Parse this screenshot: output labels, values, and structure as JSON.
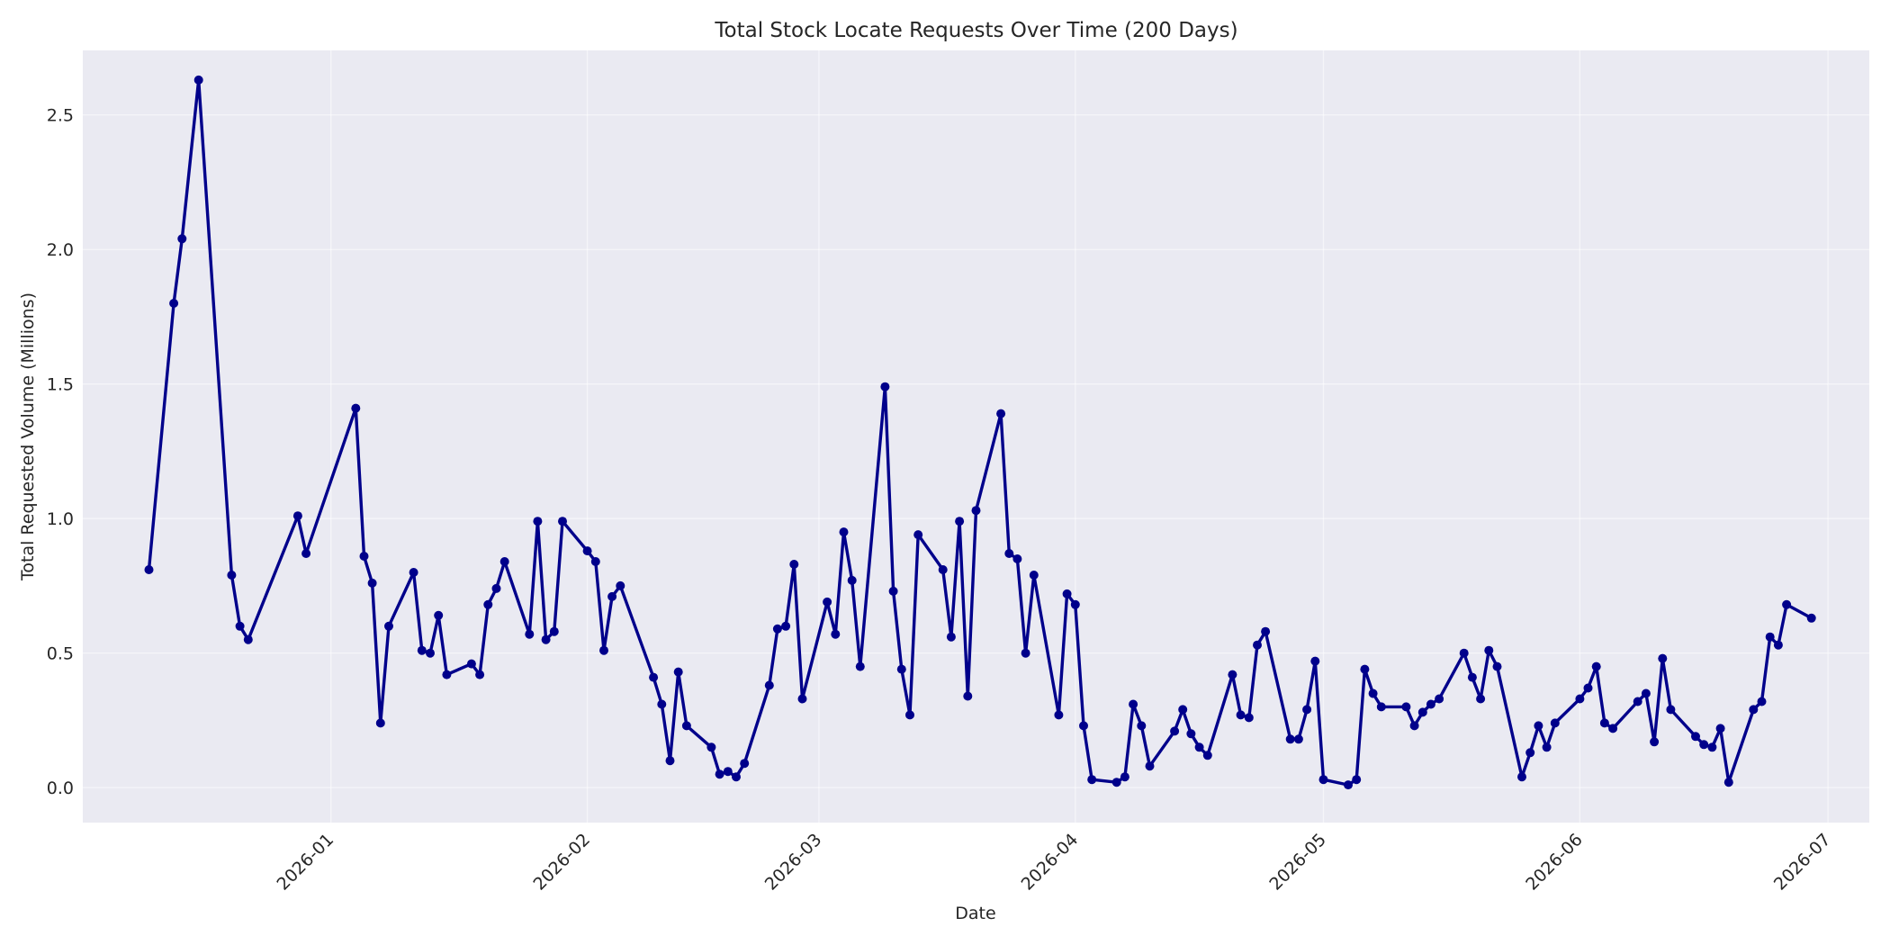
{
  "chart_data": {
    "type": "line",
    "title": "Total Stock Locate Requests Over Time (200 Days)",
    "xlabel": "Date",
    "ylabel": "Total Requested Volume (Millions)",
    "x_tick_labels": [
      "2026-01",
      "2026-02",
      "2026-03",
      "2026-04",
      "2026-05",
      "2026-06",
      "2026-07"
    ],
    "x_ticks": [
      "2026-01-01",
      "2026-02-01",
      "2026-03-01",
      "2026-04-01",
      "2026-05-01",
      "2026-06-01",
      "2026-07-01"
    ],
    "y_tick_labels": [
      "0.0",
      "0.5",
      "1.0",
      "1.5",
      "2.0",
      "2.5"
    ],
    "y_ticks": [
      0,
      0.5,
      1.0,
      1.5,
      2.0,
      2.5
    ],
    "xlim": [
      "2025-12-02",
      "2026-07-06"
    ],
    "ylim": [
      -0.13,
      2.74
    ],
    "grid": true,
    "colors": {
      "background": "#eaeaf2",
      "line": "#00008b",
      "grid": "#ffffff"
    },
    "series": [
      {
        "x": [
          "2025-12-10",
          "2025-12-13",
          "2025-12-14",
          "2025-12-16",
          "2025-12-20",
          "2025-12-21",
          "2025-12-22",
          "2025-12-28",
          "2025-12-29",
          "2026-01-04",
          "2026-01-05",
          "2026-01-06",
          "2026-01-07",
          "2026-01-08",
          "2026-01-11",
          "2026-01-12",
          "2026-01-13",
          "2026-01-14",
          "2026-01-15",
          "2026-01-18",
          "2026-01-19",
          "2026-01-20",
          "2026-01-21",
          "2026-01-22",
          "2026-01-25",
          "2026-01-26",
          "2026-01-27",
          "2026-01-28",
          "2026-01-29",
          "2026-02-01",
          "2026-02-02",
          "2026-02-03",
          "2026-02-04",
          "2026-02-05",
          "2026-02-09",
          "2026-02-10",
          "2026-02-11",
          "2026-02-12",
          "2026-02-13",
          "2026-02-16",
          "2026-02-17",
          "2026-02-18",
          "2026-02-19",
          "2026-02-20",
          "2026-02-23",
          "2026-02-24",
          "2026-02-25",
          "2026-02-26",
          "2026-02-27",
          "2026-03-02",
          "2026-03-03",
          "2026-03-04",
          "2026-03-05",
          "2026-03-06",
          "2026-03-09",
          "2026-03-10",
          "2026-03-11",
          "2026-03-12",
          "2026-03-13",
          "2026-03-16",
          "2026-03-17",
          "2026-03-18",
          "2026-03-19",
          "2026-03-20",
          "2026-03-23",
          "2026-03-24",
          "2026-03-25",
          "2026-03-26",
          "2026-03-27",
          "2026-03-30",
          "2026-03-31",
          "2026-04-01",
          "2026-04-02",
          "2026-04-03",
          "2026-04-06",
          "2026-04-07",
          "2026-04-08",
          "2026-04-09",
          "2026-04-10",
          "2026-04-13",
          "2026-04-14",
          "2026-04-15",
          "2026-04-16",
          "2026-04-17",
          "2026-04-20",
          "2026-04-21",
          "2026-04-22",
          "2026-04-23",
          "2026-04-24",
          "2026-04-27",
          "2026-04-28",
          "2026-04-29",
          "2026-04-30",
          "2026-05-01",
          "2026-05-04",
          "2026-05-05",
          "2026-05-06",
          "2026-05-07",
          "2026-05-08",
          "2026-05-11",
          "2026-05-12",
          "2026-05-13",
          "2026-05-14",
          "2026-05-15",
          "2026-05-18",
          "2026-05-19",
          "2026-05-20",
          "2026-05-21",
          "2026-05-22",
          "2026-05-25",
          "2026-05-26",
          "2026-05-27",
          "2026-05-28",
          "2026-05-29",
          "2026-06-01",
          "2026-06-02",
          "2026-06-03",
          "2026-06-04",
          "2026-06-05",
          "2026-06-08",
          "2026-06-09",
          "2026-06-10",
          "2026-06-11",
          "2026-06-12",
          "2026-06-15",
          "2026-06-16",
          "2026-06-17",
          "2026-06-18",
          "2026-06-19",
          "2026-06-22",
          "2026-06-23",
          "2026-06-24",
          "2026-06-25",
          "2026-06-26",
          "2026-06-29"
        ],
        "y": [
          0.81,
          1.8,
          2.04,
          2.63,
          0.79,
          0.6,
          0.55,
          1.01,
          0.87,
          1.41,
          0.86,
          0.76,
          0.24,
          0.6,
          0.8,
          0.51,
          0.5,
          0.64,
          0.42,
          0.46,
          0.42,
          0.68,
          0.74,
          0.84,
          0.57,
          0.99,
          0.55,
          0.58,
          0.99,
          0.88,
          0.84,
          0.51,
          0.71,
          0.75,
          0.41,
          0.31,
          0.1,
          0.43,
          0.23,
          0.15,
          0.05,
          0.06,
          0.04,
          0.09,
          0.38,
          0.59,
          0.6,
          0.83,
          0.33,
          0.69,
          0.57,
          0.95,
          0.77,
          0.45,
          1.49,
          0.73,
          0.44,
          0.27,
          0.94,
          0.81,
          0.56,
          0.99,
          0.34,
          1.03,
          1.39,
          0.87,
          0.85,
          0.5,
          0.79,
          0.27,
          0.72,
          0.68,
          0.23,
          0.03,
          0.02,
          0.04,
          0.31,
          0.23,
          0.08,
          0.21,
          0.29,
          0.2,
          0.15,
          0.12,
          0.42,
          0.27,
          0.26,
          0.53,
          0.58,
          0.18,
          0.18,
          0.29,
          0.47,
          0.03,
          0.01,
          0.03,
          0.44,
          0.35,
          0.3,
          0.3,
          0.23,
          0.28,
          0.31,
          0.33,
          0.5,
          0.41,
          0.33,
          0.51,
          0.45,
          0.04,
          0.13,
          0.23,
          0.15,
          0.24,
          0.33,
          0.37,
          0.45,
          0.24,
          0.22,
          0.32,
          0.35,
          0.17,
          0.48,
          0.29,
          0.19,
          0.16,
          0.15,
          0.22,
          0.02,
          0.29,
          0.32,
          0.56,
          0.53,
          0.68,
          0.63
        ]
      }
    ]
  }
}
